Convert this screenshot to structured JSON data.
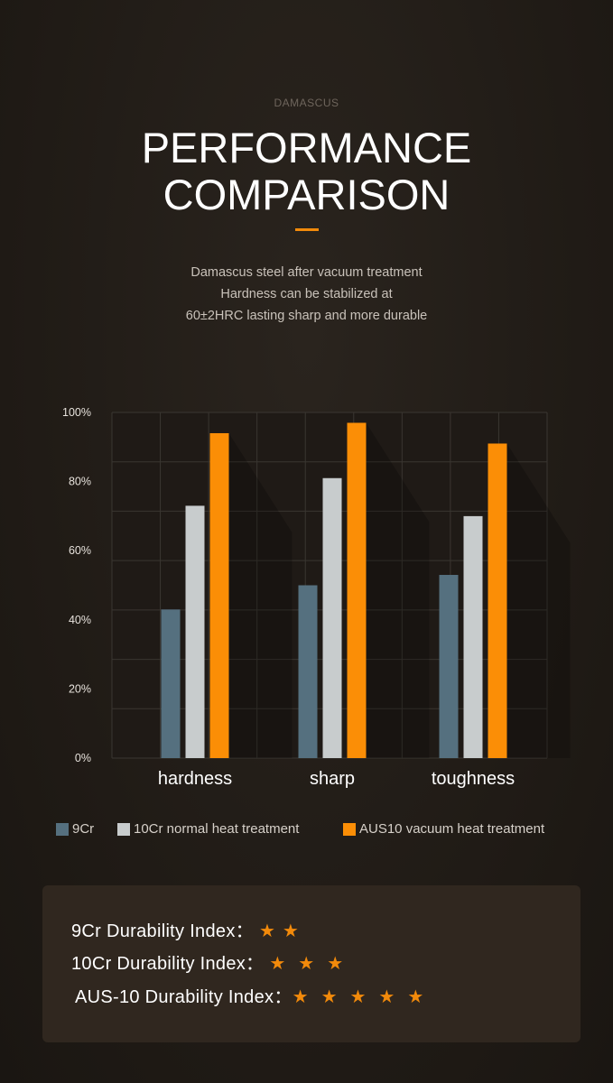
{
  "header": {
    "eyebrow": "DAMASCUS",
    "title_line1": "PERFORMANCE",
    "title_line2": "COMPARISON",
    "accent_color": "#f28a0b"
  },
  "intro": {
    "line1": "Damascus steel after vacuum treatment",
    "line2": "Hardness can be stabilized at",
    "line3": "60±2HRC lasting sharp and more durable"
  },
  "chart_data": {
    "type": "bar",
    "categories": [
      "hardness",
      "sharp",
      "toughness"
    ],
    "series": [
      {
        "name": "9Cr",
        "color": "#55707f",
        "values": [
          43,
          50,
          53
        ]
      },
      {
        "name": "10Cr normal heat treatment",
        "color": "#c8cccd",
        "values": [
          73,
          81,
          70
        ]
      },
      {
        "name": "AUS10 vacuum heat treatment",
        "color": "#fb8e06",
        "values": [
          94,
          97,
          91
        ]
      }
    ],
    "y_ticks": [
      "0%",
      "20%",
      "40%",
      "60%",
      "80%",
      "100%"
    ],
    "ylim": [
      0,
      100
    ],
    "grid": true,
    "legend_position": "bottom"
  },
  "durability": {
    "rows": [
      {
        "label": "9Cr Durability Index：",
        "stars": "★★",
        "rating": 2
      },
      {
        "label": "10Cr Durability Index：",
        "stars": "★★★",
        "rating": 3
      },
      {
        "label": "AUS-10 Durability Index：",
        "stars": "★★★★★",
        "rating": 5
      }
    ]
  }
}
